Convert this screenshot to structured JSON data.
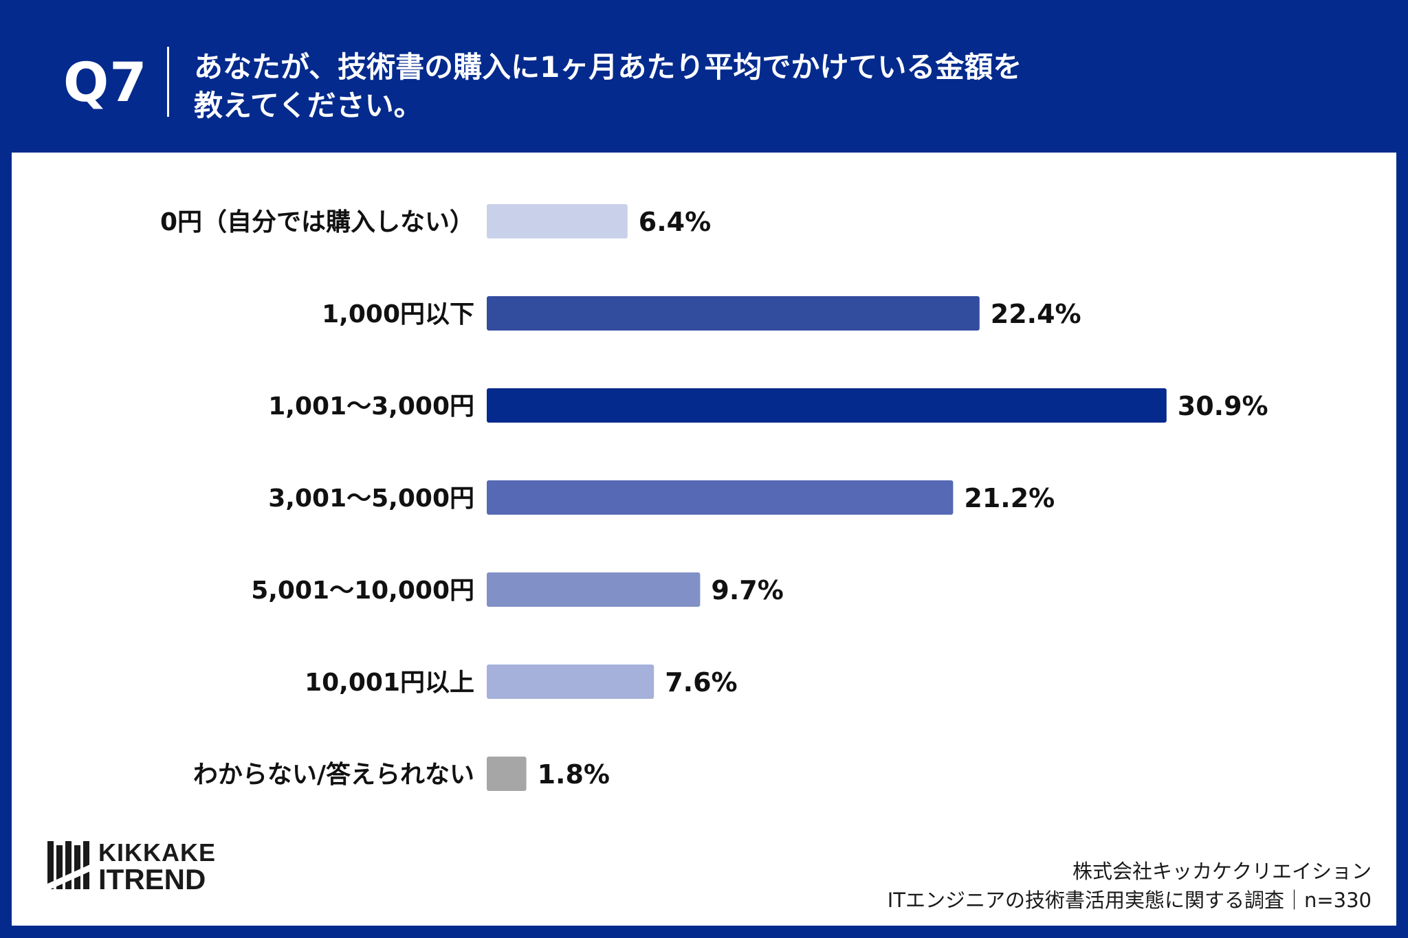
{
  "header": {
    "qnum": "Q7",
    "title_line1": "あなたが、技術書の購入に1ヶ月あたり平均でかけている金額を",
    "title_line2": "教えてください。"
  },
  "logo": {
    "line1": "KIKKAKE",
    "line2": "ITREND"
  },
  "source": {
    "company": "株式会社キッカケクリエイション",
    "survey": "ITエンジニアの技術書活用実態に関する調査｜n=330"
  },
  "chart_data": {
    "type": "bar",
    "orientation": "horizontal",
    "categories": [
      "0円（自分では購入しない）",
      "1,000円以下",
      "1,001〜3,000円",
      "3,001〜5,000円",
      "5,001〜10,000円",
      "10,001円以上",
      "わからない/答えられない"
    ],
    "values": [
      6.4,
      22.4,
      30.9,
      21.2,
      9.7,
      7.6,
      1.8
    ],
    "value_labels": [
      "6.4%",
      "22.4%",
      "30.9%",
      "21.2%",
      "9.7%",
      "7.6%",
      "1.8%"
    ],
    "colors": [
      "#c9d1ea",
      "#324c9e",
      "#032a8c",
      "#5669b5",
      "#8190c6",
      "#a5b1da",
      "#a6a6a6"
    ],
    "unit": "%",
    "grid": false,
    "legend": "none"
  }
}
